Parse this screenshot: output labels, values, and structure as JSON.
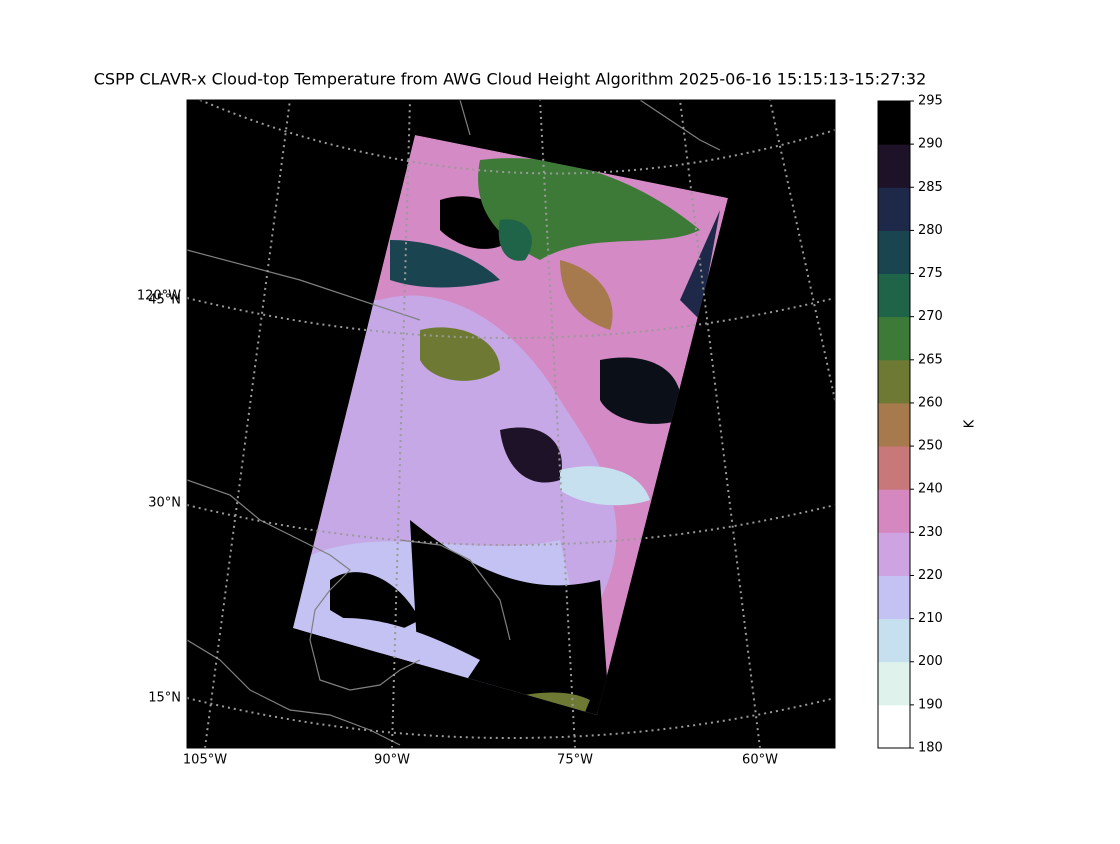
{
  "title": "CSPP CLAVR-x Cloud-top Temperature from AWG Cloud Height Algorithm 2025-06-16 15:15:13-15:27:32",
  "map": {
    "lat_labels": [
      "45°N",
      "30°N",
      "15°N"
    ],
    "lon_side_label": "120°W",
    "lon_labels": [
      "105°W",
      "90°W",
      "75°W",
      "60°W"
    ],
    "colorbar": {
      "label": "K",
      "ticks": [
        180,
        190,
        200,
        210,
        220,
        230,
        240,
        250,
        260,
        265,
        270,
        275,
        280,
        285,
        290,
        295
      ],
      "colors": [
        "#ffffff",
        "#dff3ec",
        "#c6e0f0",
        "#c4c2f2",
        "#cda3e2",
        "#d587c0",
        "#c87878",
        "#a67a4c",
        "#6e7a34",
        "#3d7a38",
        "#1f6448",
        "#1a4450",
        "#1e2848",
        "#1e1228",
        "#000000"
      ]
    }
  }
}
